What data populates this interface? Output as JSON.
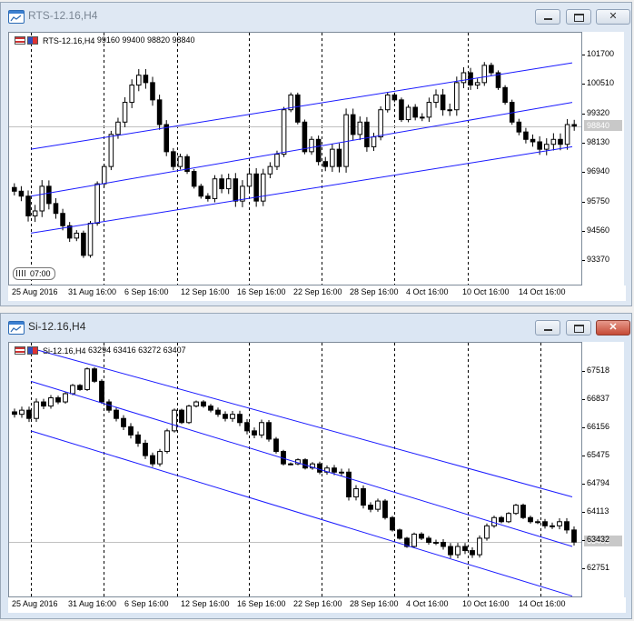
{
  "windows": [
    {
      "title": "RTS-12.16,H4",
      "info_symbol": "RTS-12.16,H4",
      "info_ohlc": "99160 99400 98820 98840",
      "price_current": "98840",
      "time_badge": "07:00",
      "chart_data": {
        "type": "candlestick",
        "symbol": "RTS-12.16",
        "timeframe": "H4",
        "title": "RTS-12.16,H4",
        "last_ohlc": {
          "open": 99160,
          "high": 99400,
          "low": 98820,
          "close": 98840
        },
        "current_price": 98840,
        "ylim": [
          92600,
          102400
        ],
        "y_ticks": [
          101700,
          100510,
          99320,
          98130,
          96940,
          95750,
          94560,
          93370
        ],
        "x_ticks": [
          "25 Aug 2016",
          "31 Aug 16:00",
          "6 Sep 16:00",
          "12 Sep 16:00",
          "16 Sep 16:00",
          "22 Sep 16:00",
          "28 Sep 16:00",
          "4 Oct 16:00",
          "10 Oct 16:00",
          "14 Oct 16:00"
        ],
        "period_separators": 7,
        "grid": false,
        "channel": {
          "upper": [
            97900,
            101400
          ],
          "middle": [
            96000,
            99800
          ],
          "lower": [
            94500,
            98000
          ]
        },
        "close_path": [
          96200,
          96000,
          95200,
          95400,
          96400,
          95700,
          95300,
          94800,
          94300,
          94500,
          93600,
          94900,
          96500,
          97200,
          98500,
          99000,
          99800,
          100500,
          100900,
          100600,
          99900,
          98900,
          97800,
          97200,
          97600,
          97000,
          96400,
          96000,
          95900,
          96700,
          96300,
          96700,
          95800,
          96400,
          96900,
          95800,
          96900,
          97200,
          97700,
          99500,
          100100,
          99000,
          97800,
          98300,
          97400,
          97200,
          97900,
          97200,
          99300,
          98500,
          99000,
          98000,
          98400,
          99500,
          100100,
          99900,
          99100,
          99600,
          99200,
          99200,
          99800,
          100100,
          99500,
          99500,
          100600,
          101000,
          100500,
          100600,
          101300,
          101000,
          100400,
          99800,
          99000,
          98600,
          98300,
          98200,
          97900,
          98100,
          98300,
          98100,
          98900,
          98840
        ]
      }
    },
    {
      "title": "Si-12.16,H4",
      "info_symbol": "Si-12.16,H4",
      "info_ohlc": "63294 63416 63272 63407",
      "price_current": "63406",
      "chart_data": {
        "type": "candlestick",
        "symbol": "Si-12.16",
        "timeframe": "H4",
        "title": "Si-12.16,H4",
        "last_ohlc": {
          "open": 63294,
          "high": 63416,
          "low": 63272,
          "close": 63407
        },
        "current_price": 63406,
        "ylim": [
          62200,
          68100
        ],
        "y_ticks": [
          67518,
          66837,
          66156,
          65475,
          64794,
          64113,
          63432,
          62751
        ],
        "x_ticks": [
          "25 Aug 2016",
          "31 Aug 16:00",
          "6 Sep 16:00",
          "12 Sep 16:00",
          "16 Sep 16:00",
          "22 Sep 16:00",
          "28 Sep 16:00",
          "4 Oct 16:00",
          "10 Oct 16:00",
          "14 Oct 16:00"
        ],
        "period_separators": 8,
        "grid": false,
        "channel": {
          "upper": [
            68100,
            64500
          ],
          "middle": [
            67300,
            63300
          ],
          "lower": [
            66100,
            62100
          ]
        },
        "close_path": [
          66500,
          66600,
          66400,
          66800,
          66700,
          66900,
          66800,
          67000,
          67200,
          67100,
          67600,
          67300,
          66800,
          66600,
          66400,
          66200,
          66000,
          65800,
          65500,
          65300,
          65600,
          66100,
          66600,
          66300,
          66700,
          66800,
          66700,
          66600,
          66500,
          66400,
          66500,
          66300,
          66100,
          66000,
          66300,
          65900,
          65600,
          65300,
          65300,
          65400,
          65200,
          65300,
          65100,
          65200,
          65100,
          65100,
          64500,
          64700,
          64300,
          64200,
          64400,
          64000,
          63700,
          63500,
          63300,
          63600,
          63500,
          63400,
          63400,
          63300,
          63100,
          63300,
          63200,
          63100,
          63500,
          63800,
          64000,
          63900,
          64100,
          64300,
          64000,
          63900,
          63900,
          63800,
          63800,
          63900,
          63700,
          63407
        ]
      }
    }
  ]
}
